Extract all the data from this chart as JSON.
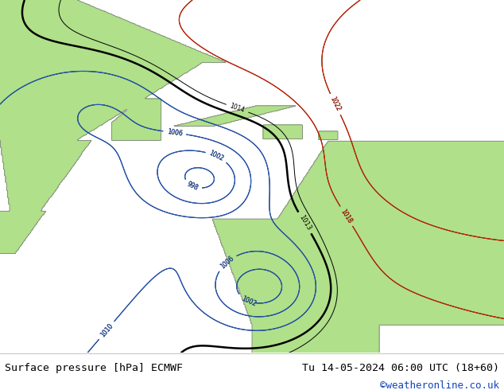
{
  "title_left": "Surface pressure [hPa] ECMWF",
  "title_right": "Tu 14-05-2024 06:00 UTC (18+60)",
  "copyright": "©weatheronline.co.uk",
  "land_color": "#b0e08a",
  "sea_color": "#d0d8d0",
  "coast_color": "#808080",
  "footer_bg": "#d8d8d8",
  "footer_text_color": "#000000",
  "copyright_color": "#1144bb",
  "title_fontsize": 9.5,
  "copyright_fontsize": 9.0,
  "fig_width": 6.34,
  "fig_height": 4.9,
  "dpi": 100,
  "isobar_black_color": "#000000",
  "isobar_blue_color": "#2255bb",
  "isobar_red_color": "#cc2200",
  "label_fontsize": 5.5,
  "lw_thin": 0.7,
  "lw_thick": 1.8
}
